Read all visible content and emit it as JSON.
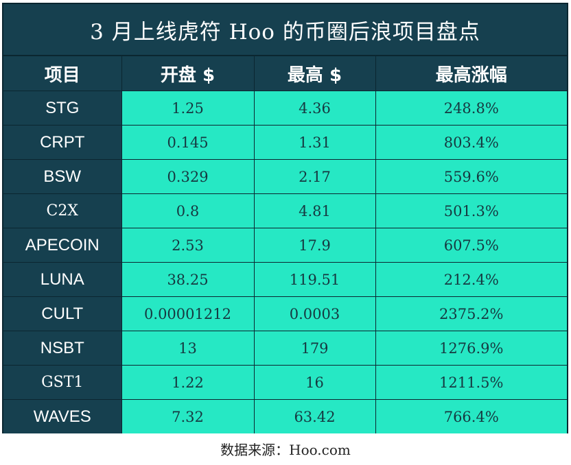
{
  "title": "3 月上线虎符 Hoo 的币圈后浪项目盘点",
  "headers": [
    "项目",
    "开盘 $",
    "最高 $",
    "最高涨幅"
  ],
  "rows": [
    {
      "name": "STG",
      "open": "1.25",
      "high": "4.36",
      "gain": "248.8%"
    },
    {
      "name": "CRPT",
      "open": "0.145",
      "high": "1.31",
      "gain": "803.4%"
    },
    {
      "name": "BSW",
      "open": "0.329",
      "high": "2.17",
      "gain": "559.6%"
    },
    {
      "name": "C2X",
      "open": "0.8",
      "high": "4.81",
      "gain": "501.3%"
    },
    {
      "name": "APECOIN",
      "open": "2.53",
      "high": "17.9",
      "gain": "607.5%"
    },
    {
      "name": "LUNA",
      "open": "38.25",
      "high": "119.51",
      "gain": "212.4%"
    },
    {
      "name": "CULT",
      "open": "0.00001212",
      "high": "0.0003",
      "gain": "2375.2%"
    },
    {
      "name": "NSBT",
      "open": "13",
      "high": "179",
      "gain": "1276.9%"
    },
    {
      "name": "GST1",
      "open": "1.22",
      "high": "16",
      "gain": "1211.5%"
    },
    {
      "name": "WAVES",
      "open": "7.32",
      "high": "63.42",
      "gain": "766.4%"
    }
  ],
  "source": "数据来源：Hoo.com",
  "colors": {
    "header_bg": "#16404f",
    "cell_bg": "#26e8c4",
    "border": "#0b2630"
  }
}
